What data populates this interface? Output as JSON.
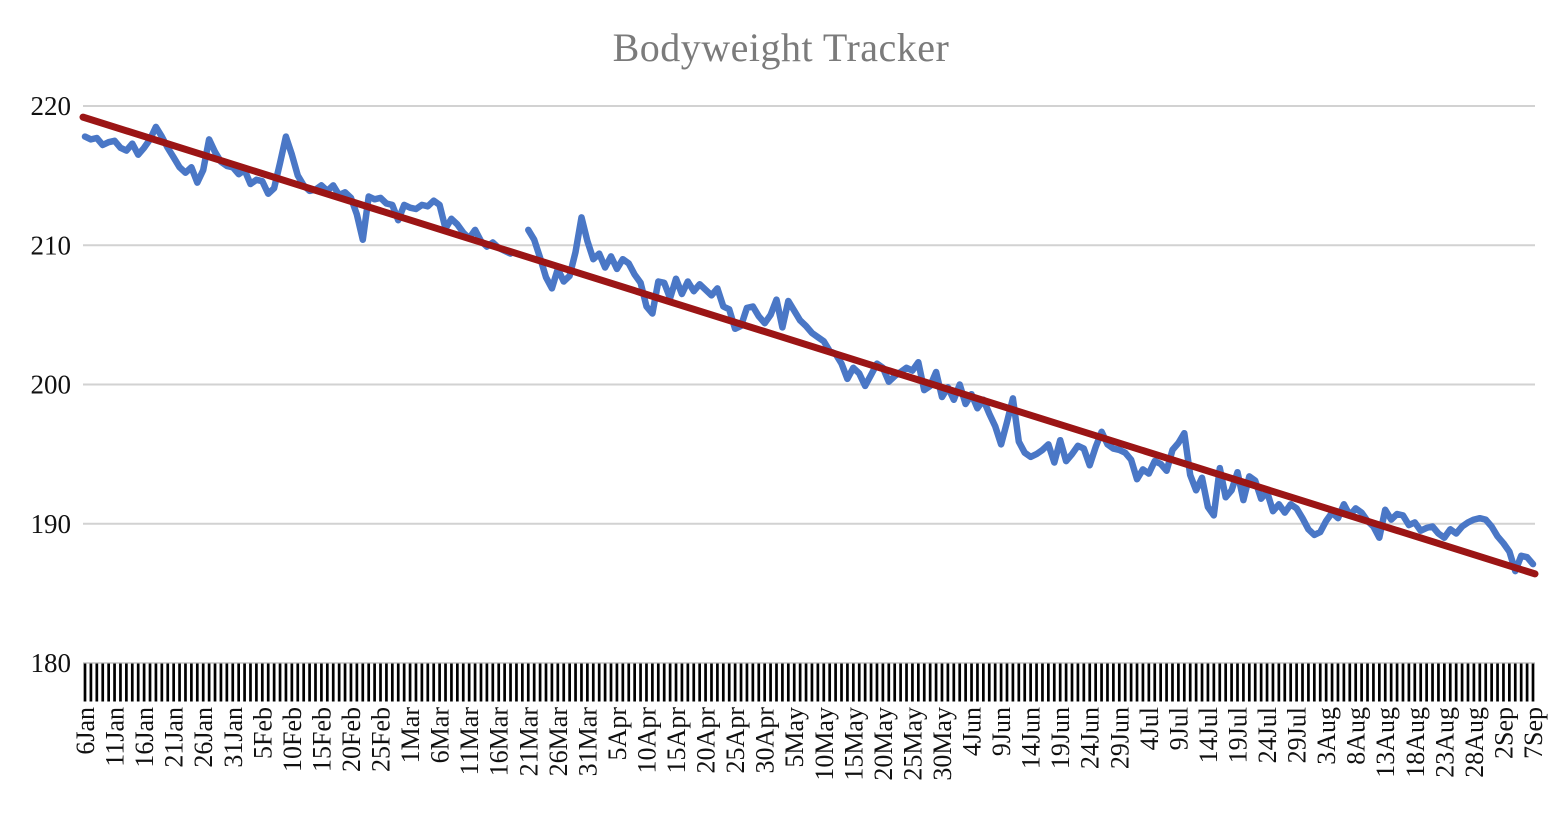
{
  "chart_data": {
    "type": "line",
    "title": "Bodyweight Tracker",
    "xlabel": "",
    "ylabel": "",
    "ylim": [
      180,
      220
    ],
    "y_tick_labels": [
      "220",
      "210",
      "200",
      "190",
      "180"
    ],
    "x_interval": "daily",
    "x_label_every_n_points": 5,
    "x_tick_labels": [
      "6Jan",
      "11Jan",
      "16Jan",
      "21Jan",
      "26Jan",
      "31Jan",
      "5Feb",
      "10Feb",
      "15Feb",
      "20Feb",
      "25Feb",
      "1Mar",
      "6Mar",
      "11Mar",
      "16Mar",
      "21Mar",
      "26Mar",
      "31Mar",
      "5Apr",
      "10Apr",
      "15Apr",
      "20Apr",
      "25Apr",
      "30Apr",
      "5May",
      "10May",
      "15May",
      "20May",
      "25May",
      "30May",
      "4Jun",
      "9Jun",
      "14Jun",
      "19Jun",
      "24Jun",
      "29Jun",
      "4Jul",
      "9Jul",
      "14Jul",
      "19Jul",
      "24Jul",
      "29Jul",
      "3Aug",
      "8Aug",
      "13Aug",
      "18Aug",
      "23Aug",
      "28Aug",
      "2Sep",
      "7Sep"
    ],
    "grid": "horizontal-only",
    "legend": "none",
    "series": [
      {
        "name": "bodyweight",
        "color": "#4a77c6",
        "line_width": 6.5,
        "values": [
          217.8,
          217.6,
          217.7,
          217.2,
          217.4,
          217.5,
          217.0,
          216.8,
          217.3,
          216.5,
          217.0,
          217.6,
          218.5,
          217.8,
          217.0,
          216.3,
          215.6,
          215.2,
          215.6,
          214.5,
          215.4,
          217.6,
          216.7,
          216.0,
          215.7,
          215.6,
          215.1,
          215.4,
          214.4,
          214.7,
          214.6,
          213.7,
          214.1,
          215.9,
          217.8,
          216.5,
          215.0,
          214.3,
          213.9,
          214.0,
          214.3,
          213.9,
          214.3,
          213.6,
          213.8,
          213.4,
          212.2,
          210.4,
          213.5,
          213.3,
          213.4,
          213.0,
          212.9,
          211.8,
          212.9,
          212.7,
          212.6,
          212.9,
          212.8,
          213.2,
          212.9,
          211.2,
          211.9,
          211.5,
          210.9,
          210.5,
          211.1,
          210.3,
          209.9,
          210.2,
          209.8,
          209.6,
          209.4,
          null,
          null,
          211.1,
          210.4,
          209.1,
          207.7,
          206.9,
          208.3,
          207.4,
          207.8,
          209.5,
          212.0,
          210.3,
          209.0,
          209.4,
          208.4,
          209.2,
          208.3,
          209.0,
          208.7,
          207.9,
          207.3,
          205.6,
          205.1,
          207.4,
          207.3,
          206.2,
          207.6,
          206.5,
          207.4,
          206.7,
          207.2,
          206.8,
          206.4,
          206.9,
          205.6,
          205.4,
          204.0,
          204.2,
          205.5,
          205.6,
          204.9,
          204.4,
          205.0,
          206.1,
          204.1,
          206.0,
          205.3,
          204.6,
          204.2,
          203.7,
          203.4,
          203.1,
          202.4,
          202.2,
          201.5,
          200.4,
          201.2,
          200.8,
          199.9,
          200.7,
          201.5,
          201.2,
          200.2,
          200.6,
          200.9,
          201.2,
          201.0,
          201.6,
          199.6,
          199.9,
          200.9,
          199.1,
          199.8,
          198.9,
          200.0,
          198.6,
          199.3,
          198.3,
          198.9,
          197.9,
          197.0,
          195.7,
          197.3,
          199.0,
          195.9,
          195.1,
          194.8,
          195.0,
          195.3,
          195.7,
          194.4,
          196.0,
          194.5,
          195.0,
          195.6,
          195.4,
          194.2,
          195.5,
          196.6,
          195.7,
          195.4,
          195.3,
          195.1,
          194.6,
          193.2,
          193.9,
          193.6,
          194.5,
          194.3,
          193.8,
          195.3,
          195.8,
          196.5,
          193.5,
          192.4,
          193.3,
          191.2,
          190.6,
          194.0,
          191.9,
          192.4,
          193.7,
          191.7,
          193.4,
          193.1,
          191.8,
          192.3,
          190.9,
          191.4,
          190.8,
          191.4,
          191.1,
          190.4,
          189.6,
          189.2,
          189.4,
          190.2,
          190.8,
          190.4,
          191.4,
          190.6,
          191.1,
          190.8,
          190.2,
          189.8,
          189.0,
          191.0,
          190.3,
          190.7,
          190.6,
          189.9,
          190.1,
          189.5,
          189.7,
          189.8,
          189.3,
          189.0,
          189.6,
          189.3,
          189.8,
          190.1,
          190.3,
          190.4,
          190.3,
          189.8,
          189.1,
          188.6,
          188.0,
          186.6,
          187.7,
          187.6,
          187.1
        ]
      },
      {
        "name": "trend-line",
        "type": "linear-trend",
        "color": "#9b1515",
        "line_width": 7,
        "start_value": 219.2,
        "end_value": 186.4
      }
    ]
  },
  "colors": {
    "background": "#ffffff",
    "gridline": "#d2d2d2",
    "title_text": "#7b7b7b",
    "axis_text": "#111111",
    "tick_marks": "#000000"
  }
}
